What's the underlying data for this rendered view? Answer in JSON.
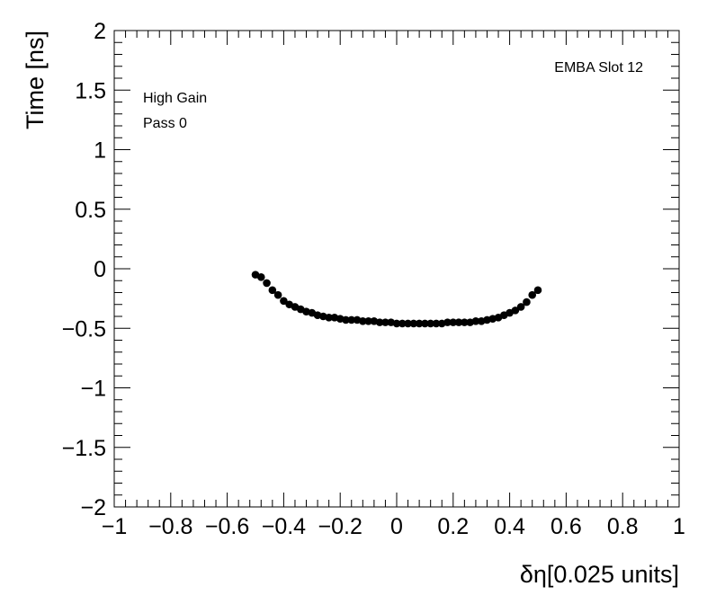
{
  "chart_data": {
    "type": "scatter",
    "title": "",
    "xlabel": "δη[0.025 units]",
    "ylabel": "Time [ns]",
    "xlim": [
      -1,
      1
    ],
    "ylim": [
      -2,
      2
    ],
    "x_ticks": [
      -1,
      -0.8,
      -0.6,
      -0.4,
      -0.2,
      0,
      0.2,
      0.4,
      0.6,
      0.8,
      1
    ],
    "x_tick_labels": [
      "−1",
      "−0.8",
      "−0.6",
      "−0.4",
      "−0.2",
      "0",
      "0.2",
      "0.4",
      "0.6",
      "0.8",
      "1"
    ],
    "y_ticks": [
      -2,
      -1.5,
      -1,
      -0.5,
      0,
      0.5,
      1,
      1.5,
      2
    ],
    "y_tick_labels": [
      "−2",
      "−1.5",
      "−1",
      "−0.5",
      "0",
      "0.5",
      "1",
      "1.5",
      "2"
    ],
    "grid": false,
    "annotations": {
      "top_right": "EMBA Slot 12",
      "top_left_1": "High Gain",
      "top_left_2": "Pass 0"
    },
    "series": [
      {
        "marker_color": "#000000",
        "x": [
          -0.5,
          -0.48,
          -0.46,
          -0.44,
          -0.42,
          -0.4,
          -0.38,
          -0.36,
          -0.34,
          -0.32,
          -0.3,
          -0.28,
          -0.26,
          -0.24,
          -0.22,
          -0.2,
          -0.18,
          -0.16,
          -0.14,
          -0.12,
          -0.1,
          -0.08,
          -0.06,
          -0.04,
          -0.02,
          0.0,
          0.02,
          0.04,
          0.06,
          0.08,
          0.1,
          0.12,
          0.14,
          0.16,
          0.18,
          0.2,
          0.22,
          0.24,
          0.26,
          0.28,
          0.3,
          0.32,
          0.34,
          0.36,
          0.38,
          0.4,
          0.42,
          0.44,
          0.46,
          0.48,
          0.5
        ],
        "y": [
          -0.05,
          -0.07,
          -0.12,
          -0.18,
          -0.22,
          -0.27,
          -0.3,
          -0.32,
          -0.34,
          -0.36,
          -0.37,
          -0.39,
          -0.4,
          -0.41,
          -0.41,
          -0.42,
          -0.43,
          -0.43,
          -0.43,
          -0.44,
          -0.44,
          -0.44,
          -0.45,
          -0.45,
          -0.45,
          -0.46,
          -0.46,
          -0.46,
          -0.46,
          -0.46,
          -0.46,
          -0.46,
          -0.46,
          -0.46,
          -0.45,
          -0.45,
          -0.45,
          -0.45,
          -0.45,
          -0.44,
          -0.44,
          -0.43,
          -0.42,
          -0.41,
          -0.39,
          -0.37,
          -0.35,
          -0.32,
          -0.28,
          -0.22,
          -0.18
        ]
      }
    ]
  }
}
